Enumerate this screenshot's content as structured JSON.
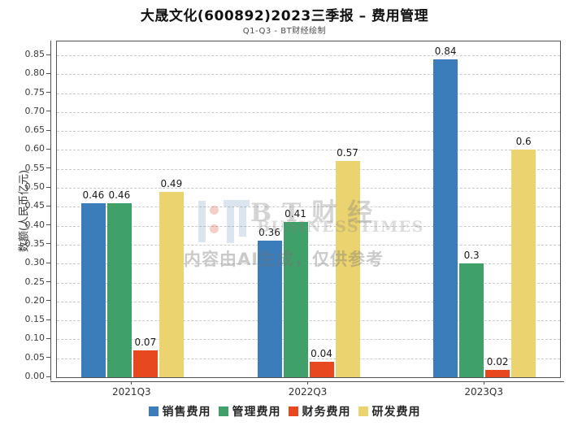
{
  "header": {
    "title": "大晟文化(600892)2023三季报 – 费用管理",
    "subtitle": "Q1-Q3 - BT财经绘制"
  },
  "watermark": {
    "brand": "BT财经",
    "subbrand": "BUSINESSTIMES",
    "disclaimer": "内容由AI生成，仅供参考"
  },
  "chart_data": {
    "type": "bar",
    "title": "大晟文化(600892)2023三季报 – 费用管理",
    "subtitle": "Q1-Q3 - BT财经绘制",
    "ylabel": "数额(人民币亿元)",
    "xlabel": "",
    "categories": [
      "2021Q3",
      "2022Q3",
      "2023Q3"
    ],
    "series": [
      {
        "name": "销售费用",
        "color": "#3b7dba",
        "values": [
          0.46,
          0.36,
          0.84
        ]
      },
      {
        "name": "管理费用",
        "color": "#40a06a",
        "values": [
          0.46,
          0.41,
          0.3
        ]
      },
      {
        "name": "财务费用",
        "color": "#e8481f",
        "values": [
          0.07,
          0.04,
          0.02
        ]
      },
      {
        "name": "研发费用",
        "color": "#ebd36f",
        "values": [
          0.49,
          0.57,
          0.6
        ]
      }
    ],
    "bar_value_labels": [
      [
        "0.46",
        "0.36",
        "0.84"
      ],
      [
        "0.46",
        "0.41",
        "0.3"
      ],
      [
        "0.07",
        "0.04",
        "0.02"
      ],
      [
        "0.49",
        "0.57",
        "0.6"
      ]
    ],
    "ylim": [
      0,
      0.85
    ],
    "y_tick_step": 0.05,
    "y_ticks": [
      0.0,
      0.05,
      0.1,
      0.15,
      0.2,
      0.25,
      0.3,
      0.35,
      0.4,
      0.45,
      0.5,
      0.55,
      0.6,
      0.65,
      0.7,
      0.75,
      0.8,
      0.85
    ],
    "grid": "horizontal-dashed",
    "legend_position": "bottom"
  }
}
